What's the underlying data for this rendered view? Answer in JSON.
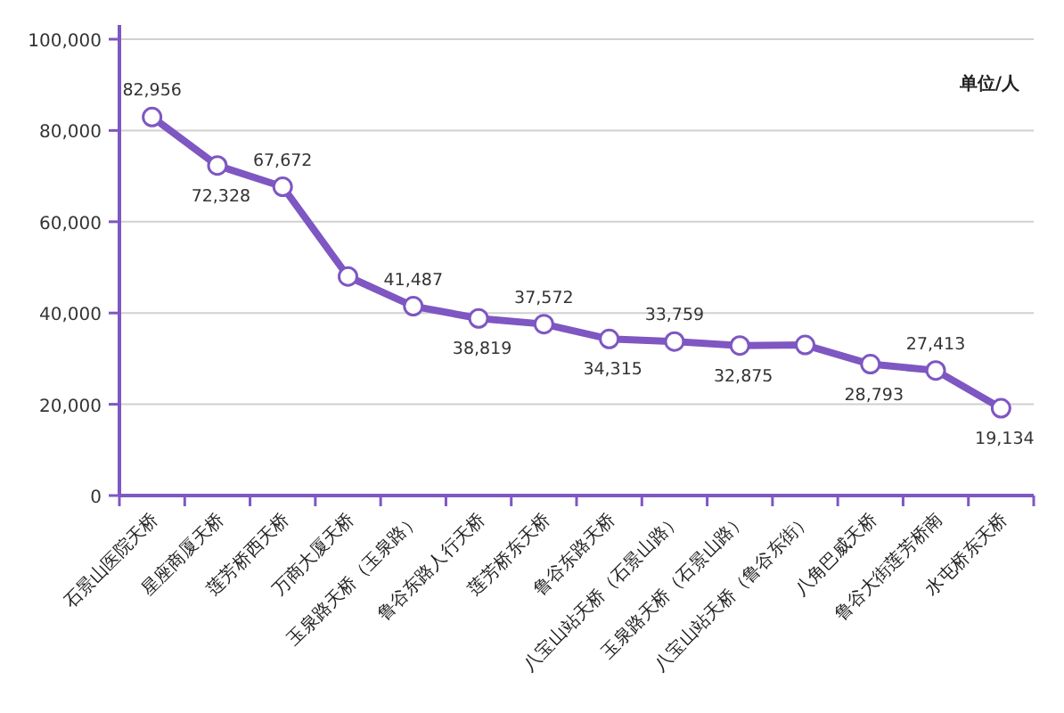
{
  "chart_data": {
    "type": "line",
    "categories": [
      "石景山医院天桥",
      "星座商厦天桥",
      "莲芳桥西天桥",
      "万商大厦天桥",
      "玉泉路天桥（玉泉路）",
      "鲁谷东路人行天桥",
      "莲芳桥东天桥",
      "鲁谷东路天桥",
      "八宝山站天桥（石景山路）",
      "玉泉路天桥（石景山路）",
      "八宝山站天桥（鲁谷东街）",
      "八角巴威天桥",
      "鲁谷大街莲芳桥南",
      "水屯桥东天桥"
    ],
    "series": [
      {
        "color": "#7e57c2",
        "values": [
          82956,
          72328,
          67672,
          48000,
          41487,
          38819,
          37572,
          34315,
          33759,
          32875,
          33000,
          28793,
          27413,
          19134
        ],
        "value_labels": [
          "82,956",
          "72,328",
          "67,672",
          null,
          "41,487",
          "38,819",
          "37,572",
          "34,315",
          "33,759",
          "32,875",
          null,
          "28,793",
          "27,413",
          "19,134"
        ]
      }
    ],
    "ylim": [
      0,
      100000
    ],
    "yticks": [
      0,
      {
        "value": 20000,
        "label": "20,000"
      },
      {
        "value": 40000,
        "label": "40,000"
      },
      {
        "value": 60000,
        "label": "60,000"
      },
      {
        "value": 80000,
        "label": "80,000"
      },
      {
        "value": 100000,
        "label": "100,000"
      }
    ],
    "grid": "y",
    "marker": "circle",
    "line_style": "solid",
    "annotations": [
      "单位/人"
    ]
  }
}
